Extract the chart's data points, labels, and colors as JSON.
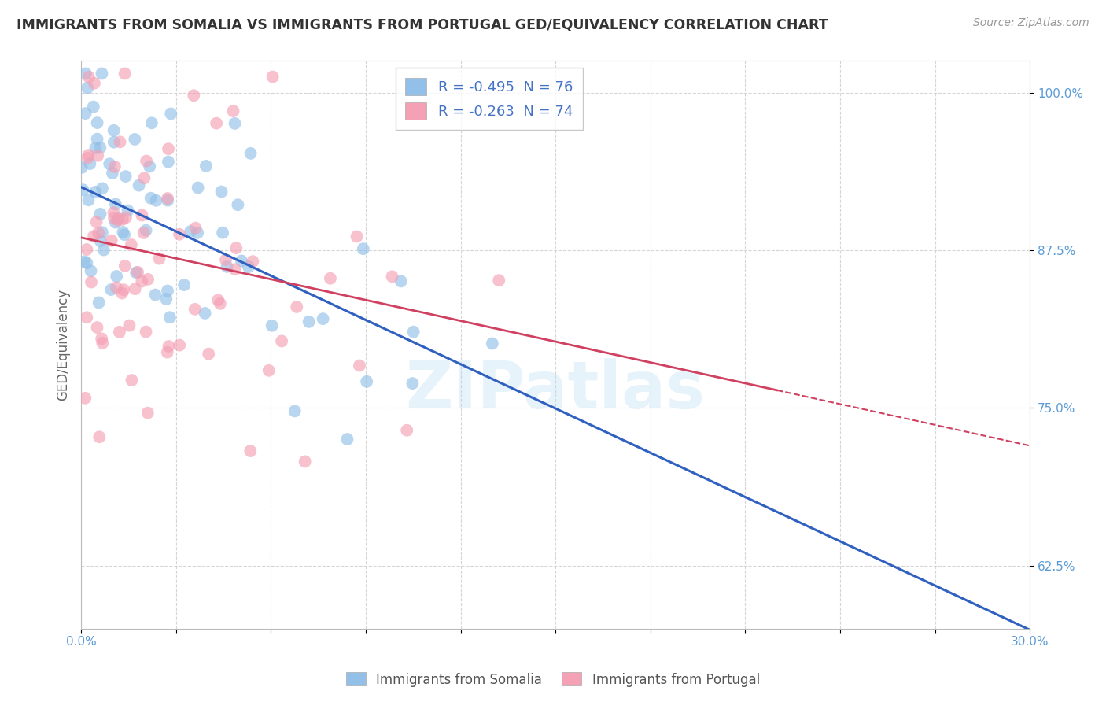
{
  "title": "IMMIGRANTS FROM SOMALIA VS IMMIGRANTS FROM PORTUGAL GED/EQUIVALENCY CORRELATION CHART",
  "source": "Source: ZipAtlas.com",
  "ylabel": "GED/Equivalency",
  "xlim": [
    0.0,
    30.0
  ],
  "ylim": [
    57.5,
    102.5
  ],
  "yticks": [
    62.5,
    75.0,
    87.5,
    100.0
  ],
  "ytick_labels": [
    "62.5%",
    "75.0%",
    "87.5%",
    "100.0%"
  ],
  "xtick_labels_ends": [
    "0.0%",
    "30.0%"
  ],
  "somalia_color": "#92C0E8",
  "portugal_color": "#F4A0B5",
  "somalia_line_color": "#3060C0",
  "portugal_line_color": "#D04060",
  "somalia_R": -0.495,
  "somalia_N": 76,
  "portugal_R": -0.263,
  "portugal_N": 74,
  "legend_label_1": "Immigrants from Somalia",
  "legend_label_2": "Immigrants from Portugal",
  "watermark": "ZIPatlas",
  "somalia_intercept": 92.5,
  "somalia_slope": -1.17,
  "portugal_intercept": 88.5,
  "portugal_slope": -0.55,
  "portugal_line_end_x": 22.0,
  "grid_color": "#CCCCCC",
  "axis_color": "#AAAAAA",
  "background_color": "#FFFFFF",
  "title_color": "#333333",
  "tick_color": "#5B9BD5",
  "legend_text_color": "#4472C4"
}
